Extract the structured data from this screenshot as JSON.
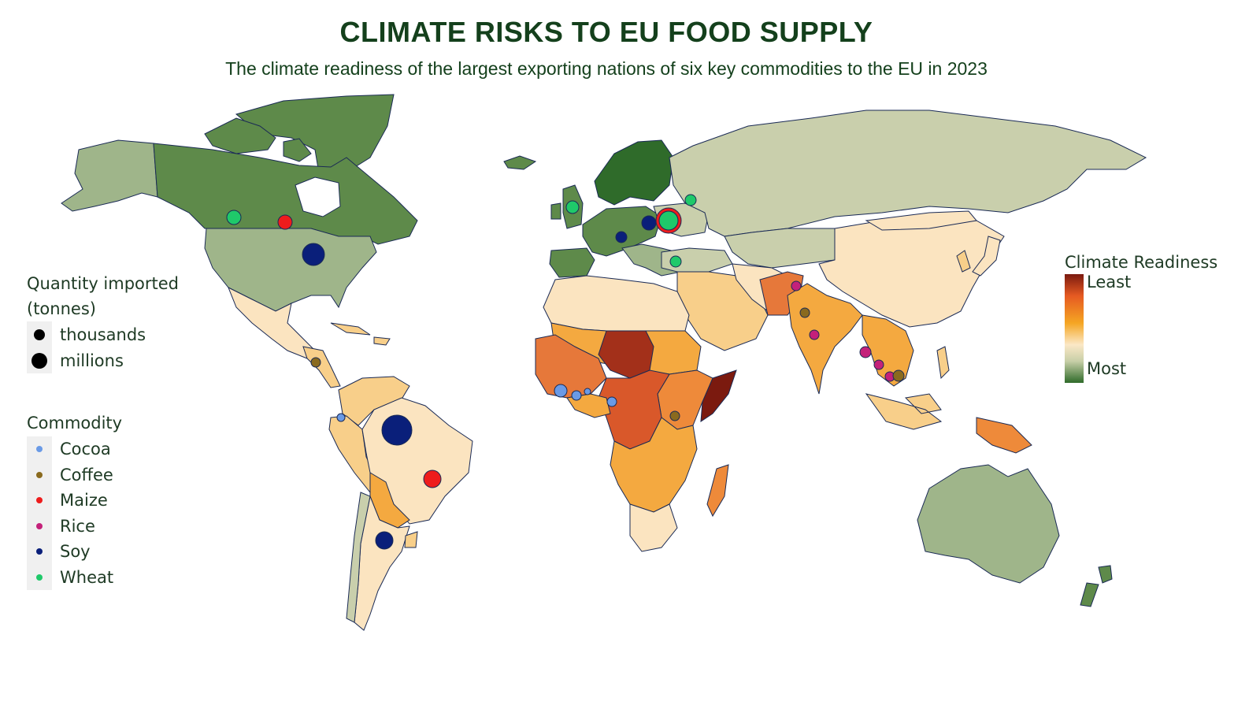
{
  "title": "CLIMATE RISKS TO EU FOOD SUPPLY",
  "subtitle": "The climate readiness of the largest exporting nations of six key commodities to the EU in 2023",
  "legend_quantity": {
    "heading_line1": "Quantity imported",
    "heading_line2": "(tonnes)",
    "items": [
      {
        "label": "thousands"
      },
      {
        "label": "millions"
      }
    ]
  },
  "legend_commodity": {
    "heading": "Commodity",
    "items": [
      {
        "label": "Cocoa",
        "color": "#6a9ae6"
      },
      {
        "label": "Coffee",
        "color": "#8a6a1e"
      },
      {
        "label": "Maize",
        "color": "#ee1c1c"
      },
      {
        "label": "Rice",
        "color": "#c4217a"
      },
      {
        "label": "Soy",
        "color": "#0a1f7a"
      },
      {
        "label": "Wheat",
        "color": "#1fc96a"
      }
    ]
  },
  "legend_readiness": {
    "heading": "Climate Readiness",
    "least": "Least",
    "most": "Most"
  },
  "colors": {
    "ocean": "#ffffff",
    "border": "#1a2a55",
    "most_ready": "#2f6b2a",
    "high_ready": "#5e8a4a",
    "mid_high": "#9fb58a",
    "neutral_green": "#c9cfac",
    "neutral": "#fbe4c0",
    "low_mid": "#f8cf8a",
    "low": "#f4a940",
    "lower": "#ee8a3a",
    "very_low": "#d9582a",
    "least_ready": "#7b1a0f"
  }
}
